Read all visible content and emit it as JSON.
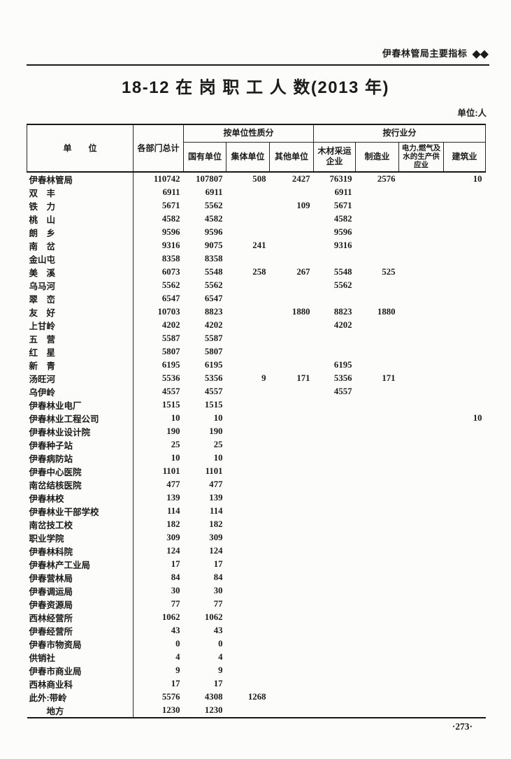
{
  "page": {
    "running_head": "伊春林管局主要指标",
    "running_head_marks": "◆◆",
    "title": "18-12  在 岗 职 工 人 数(2013 年)",
    "unit_note": "单位:人",
    "page_number": "·273·",
    "ink_color": "#1b1b1b",
    "paper_color": "#fcfcfa"
  },
  "table": {
    "header": {
      "unit": "单　　位",
      "total": "各部门总计",
      "group_ownership": "按单位性质分",
      "group_industry": "按行业分",
      "state": "国有单位",
      "collective": "集体单位",
      "other": "其他单位",
      "timber": "木材采运企业",
      "manufacturing": "制造业",
      "electricity": "电力,燃气及水的生产供应业",
      "construction": "建筑业"
    },
    "rows": [
      {
        "name": "伊春林管局",
        "values": [
          "110742",
          "107807",
          "508",
          "2427",
          "76319",
          "2576",
          "",
          "10"
        ]
      },
      {
        "name": "双　丰",
        "values": [
          "6911",
          "6911",
          "",
          "",
          "6911",
          "",
          "",
          ""
        ]
      },
      {
        "name": "铁　力",
        "values": [
          "5671",
          "5562",
          "",
          "109",
          "5671",
          "",
          "",
          ""
        ]
      },
      {
        "name": "桃　山",
        "values": [
          "4582",
          "4582",
          "",
          "",
          "4582",
          "",
          "",
          ""
        ]
      },
      {
        "name": "朗　乡",
        "values": [
          "9596",
          "9596",
          "",
          "",
          "9596",
          "",
          "",
          ""
        ]
      },
      {
        "name": "南　岔",
        "values": [
          "9316",
          "9075",
          "241",
          "",
          "9316",
          "",
          "",
          ""
        ]
      },
      {
        "name": "金山屯",
        "values": [
          "8358",
          "8358",
          "",
          "",
          "",
          "",
          "",
          ""
        ]
      },
      {
        "name": "美　溪",
        "values": [
          "6073",
          "5548",
          "258",
          "267",
          "5548",
          "525",
          "",
          ""
        ]
      },
      {
        "name": "乌马河",
        "values": [
          "5562",
          "5562",
          "",
          "",
          "5562",
          "",
          "",
          ""
        ]
      },
      {
        "name": "翠　峦",
        "values": [
          "6547",
          "6547",
          "",
          "",
          "",
          "",
          "",
          ""
        ]
      },
      {
        "name": "友　好",
        "values": [
          "10703",
          "8823",
          "",
          "1880",
          "8823",
          "1880",
          "",
          ""
        ]
      },
      {
        "name": "上甘岭",
        "values": [
          "4202",
          "4202",
          "",
          "",
          "4202",
          "",
          "",
          ""
        ]
      },
      {
        "name": "五　营",
        "values": [
          "5587",
          "5587",
          "",
          "",
          "",
          "",
          "",
          ""
        ]
      },
      {
        "name": "红　星",
        "values": [
          "5807",
          "5807",
          "",
          "",
          "",
          "",
          "",
          ""
        ]
      },
      {
        "name": "新　青",
        "values": [
          "6195",
          "6195",
          "",
          "",
          "6195",
          "",
          "",
          ""
        ]
      },
      {
        "name": "汤旺河",
        "values": [
          "5536",
          "5356",
          "9",
          "171",
          "5356",
          "171",
          "",
          ""
        ]
      },
      {
        "name": "乌伊岭",
        "values": [
          "4557",
          "4557",
          "",
          "",
          "4557",
          "",
          "",
          ""
        ]
      },
      {
        "name": "伊春林业电厂",
        "values": [
          "1515",
          "1515",
          "",
          "",
          "",
          "",
          "",
          ""
        ]
      },
      {
        "name": "伊春林业工程公司",
        "values": [
          "10",
          "10",
          "",
          "",
          "",
          "",
          "",
          "10"
        ]
      },
      {
        "name": "伊春林业设计院",
        "values": [
          "190",
          "190",
          "",
          "",
          "",
          "",
          "",
          ""
        ]
      },
      {
        "name": "伊春种子站",
        "values": [
          "25",
          "25",
          "",
          "",
          "",
          "",
          "",
          ""
        ]
      },
      {
        "name": "伊春病防站",
        "values": [
          "10",
          "10",
          "",
          "",
          "",
          "",
          "",
          ""
        ]
      },
      {
        "name": "伊春中心医院",
        "values": [
          "1101",
          "1101",
          "",
          "",
          "",
          "",
          "",
          ""
        ]
      },
      {
        "name": "南岔结核医院",
        "values": [
          "477",
          "477",
          "",
          "",
          "",
          "",
          "",
          ""
        ]
      },
      {
        "name": "伊春林校",
        "values": [
          "139",
          "139",
          "",
          "",
          "",
          "",
          "",
          ""
        ]
      },
      {
        "name": "伊春林业干部学校",
        "values": [
          "114",
          "114",
          "",
          "",
          "",
          "",
          "",
          ""
        ]
      },
      {
        "name": "南岔技工校",
        "values": [
          "182",
          "182",
          "",
          "",
          "",
          "",
          "",
          ""
        ]
      },
      {
        "name": "职业学院",
        "values": [
          "309",
          "309",
          "",
          "",
          "",
          "",
          "",
          ""
        ]
      },
      {
        "name": "伊春林科院",
        "values": [
          "124",
          "124",
          "",
          "",
          "",
          "",
          "",
          ""
        ]
      },
      {
        "name": "伊春林产工业局",
        "values": [
          "17",
          "17",
          "",
          "",
          "",
          "",
          "",
          ""
        ]
      },
      {
        "name": "伊春营林局",
        "values": [
          "84",
          "84",
          "",
          "",
          "",
          "",
          "",
          ""
        ]
      },
      {
        "name": "伊春调运局",
        "values": [
          "30",
          "30",
          "",
          "",
          "",
          "",
          "",
          ""
        ]
      },
      {
        "name": "伊春资源局",
        "values": [
          "77",
          "77",
          "",
          "",
          "",
          "",
          "",
          ""
        ]
      },
      {
        "name": "西林经营所",
        "values": [
          "1062",
          "1062",
          "",
          "",
          "",
          "",
          "",
          ""
        ]
      },
      {
        "name": "伊春经营所",
        "values": [
          "43",
          "43",
          "",
          "",
          "",
          "",
          "",
          ""
        ]
      },
      {
        "name": "伊春市物资局",
        "values": [
          "0",
          "0",
          "",
          "",
          "",
          "",
          "",
          ""
        ]
      },
      {
        "name": "供销社",
        "values": [
          "4",
          "4",
          "",
          "",
          "",
          "",
          "",
          ""
        ]
      },
      {
        "name": "伊春市商业局",
        "values": [
          "9",
          "9",
          "",
          "",
          "",
          "",
          "",
          ""
        ]
      },
      {
        "name": "西林商业科",
        "values": [
          "17",
          "17",
          "",
          "",
          "",
          "",
          "",
          ""
        ]
      },
      {
        "name": "此外:带岭",
        "values": [
          "5576",
          "4308",
          "1268",
          "",
          "",
          "",
          "",
          ""
        ]
      },
      {
        "name": "　　地方",
        "values": [
          "1230",
          "1230",
          "",
          "",
          "",
          "",
          "",
          ""
        ]
      }
    ]
  }
}
